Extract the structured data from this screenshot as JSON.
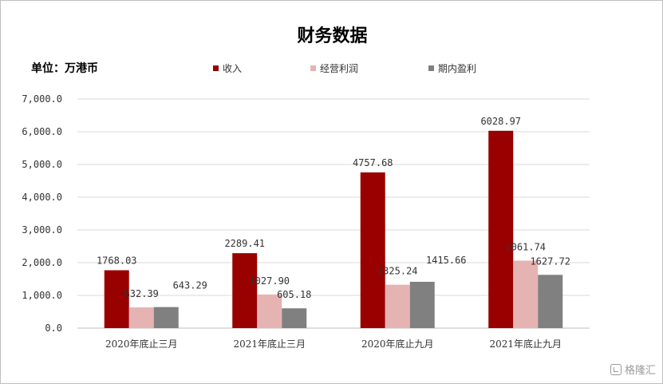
{
  "chart_data": {
    "type": "bar",
    "title": "财务数据",
    "unit_label": "单位：万港币",
    "categories": [
      "2020年底止三月",
      "2021年底止三月",
      "2020年底止九月",
      "2021年底止九月"
    ],
    "series": [
      {
        "name": "收入",
        "color": "#990000",
        "values": [
          1768.03,
          2289.41,
          4757.68,
          6028.97
        ],
        "labels": [
          "1768.03",
          "2289.41",
          "4757.68",
          "6028.97"
        ]
      },
      {
        "name": "经营利润",
        "color": "#e6b3b3",
        "values": [
          632.39,
          1027.9,
          1325.24,
          2061.74
        ],
        "labels": [
          "632.39",
          "1027.90",
          "1325.24",
          "2061.74"
        ]
      },
      {
        "name": "期内盈利",
        "color": "#808080",
        "values": [
          643.29,
          605.18,
          1415.66,
          1627.72
        ],
        "labels": [
          "643.29",
          "605.18",
          "1415.66",
          "1627.72"
        ]
      }
    ],
    "yticks": [
      "0.0",
      "1,000.0",
      "2,000.0",
      "3,000.0",
      "4,000.0",
      "5,000.0",
      "6,000.0",
      "7,000.0"
    ],
    "ylim": [
      0,
      7000
    ],
    "grid": true,
    "legend_position": "top"
  },
  "watermark": {
    "text": "格隆汇"
  }
}
